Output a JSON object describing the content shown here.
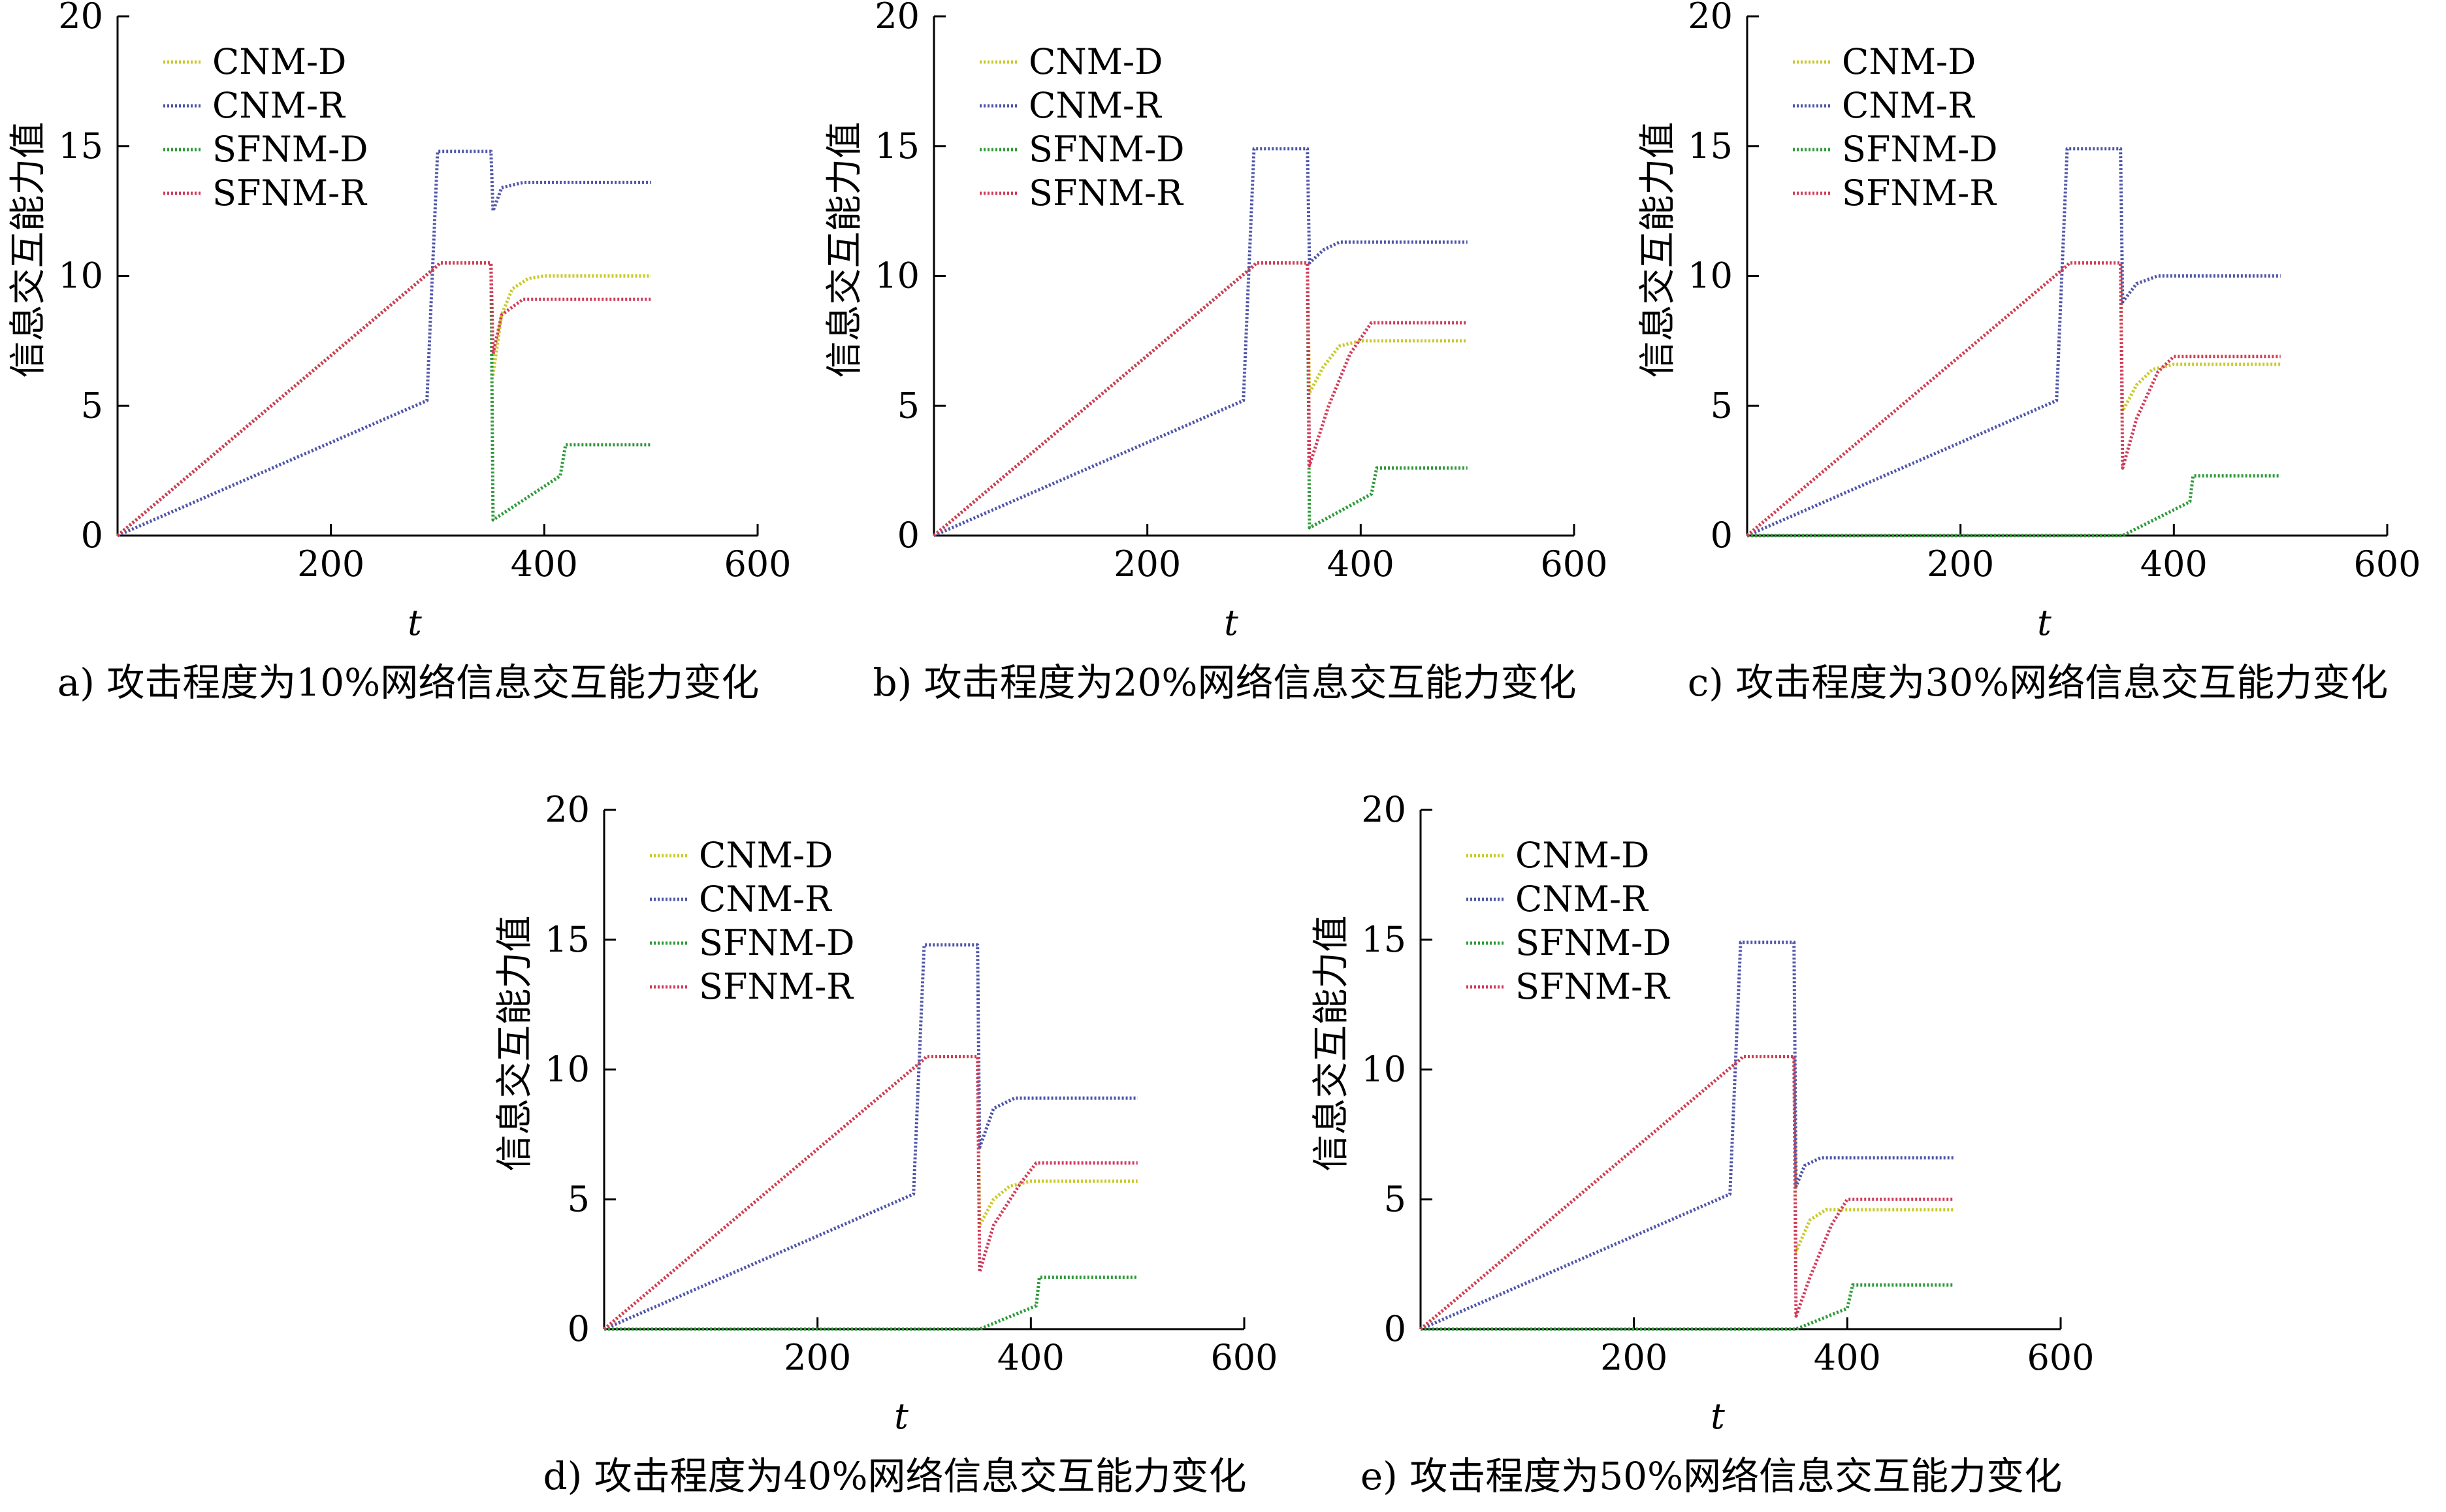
{
  "figure": {
    "panels": [
      {
        "id": "a",
        "caption": "a) 攻击程度为10%网络信息交互能力变化"
      },
      {
        "id": "b",
        "caption": "b) 攻击程度为20%网络信息交互能力变化"
      },
      {
        "id": "c",
        "caption": "c) 攻击程度为30%网络信息交互能力变化"
      },
      {
        "id": "d",
        "caption": "d) 攻击程度为40%网络信息交互能力变化"
      },
      {
        "id": "e",
        "caption": "e) 攻击程度为50%网络信息交互能力变化"
      }
    ]
  },
  "colors": {
    "CNM-D": "#c9c92a",
    "CNM-R": "#4f55a8",
    "SFNM-D": "#2e9a3a",
    "SFNM-R": "#d23b5a"
  },
  "chart_data": [
    {
      "type": "line",
      "panel": "a",
      "xlabel": "t",
      "ylabel": "信息交互能力值",
      "xlim": [
        0,
        600
      ],
      "ylim": [
        0,
        20
      ],
      "xticks": [
        200,
        400,
        600
      ],
      "yticks": [
        0,
        5,
        10,
        15,
        20
      ],
      "legend": "top-left",
      "series": [
        {
          "name": "CNM-D",
          "x": [
            0,
            300,
            302,
            350,
            352,
            360,
            370,
            385,
            400,
            500
          ],
          "y": [
            0,
            10.4,
            10.5,
            10.5,
            6.2,
            8.5,
            9.5,
            9.9,
            10.0,
            10.0
          ]
        },
        {
          "name": "CNM-R",
          "x": [
            0,
            290,
            300,
            350,
            352,
            360,
            380,
            500
          ],
          "y": [
            0,
            5.2,
            14.8,
            14.8,
            12.5,
            13.4,
            13.6,
            13.6
          ]
        },
        {
          "name": "SFNM-D",
          "x": [
            0,
            300,
            302,
            350,
            352,
            415,
            420,
            500
          ],
          "y": [
            0,
            10.4,
            10.5,
            10.5,
            0.6,
            2.3,
            3.5,
            3.5
          ]
        },
        {
          "name": "SFNM-R",
          "x": [
            0,
            300,
            302,
            350,
            352,
            360,
            380,
            500
          ],
          "y": [
            0,
            10.4,
            10.5,
            10.5,
            7.0,
            8.5,
            9.1,
            9.1
          ]
        }
      ]
    },
    {
      "type": "line",
      "panel": "b",
      "xlabel": "t",
      "ylabel": "信息交互能力值",
      "xlim": [
        0,
        600
      ],
      "ylim": [
        0,
        20
      ],
      "xticks": [
        200,
        400,
        600
      ],
      "yticks": [
        0,
        5,
        10,
        15,
        20
      ],
      "legend": "top-left",
      "series": [
        {
          "name": "CNM-D",
          "x": [
            0,
            300,
            302,
            350,
            352,
            365,
            380,
            400,
            500
          ],
          "y": [
            0,
            10.4,
            10.5,
            10.5,
            5.5,
            6.5,
            7.3,
            7.5,
            7.5
          ]
        },
        {
          "name": "CNM-R",
          "x": [
            0,
            290,
            300,
            350,
            352,
            365,
            380,
            500
          ],
          "y": [
            0,
            5.2,
            14.9,
            14.9,
            10.5,
            11.0,
            11.3,
            11.3
          ]
        },
        {
          "name": "SFNM-D",
          "x": [
            0,
            300,
            302,
            350,
            352,
            410,
            415,
            500
          ],
          "y": [
            0,
            10.4,
            10.5,
            10.5,
            0.3,
            1.6,
            2.6,
            2.6
          ]
        },
        {
          "name": "SFNM-R",
          "x": [
            0,
            300,
            302,
            350,
            352,
            370,
            390,
            410,
            500
          ],
          "y": [
            0,
            10.4,
            10.5,
            10.5,
            2.7,
            5.0,
            7.0,
            8.2,
            8.2
          ]
        }
      ]
    },
    {
      "type": "line",
      "panel": "c",
      "xlabel": "t",
      "ylabel": "信息交互能力值",
      "xlim": [
        0,
        600
      ],
      "ylim": [
        0,
        20
      ],
      "xticks": [
        200,
        400,
        600
      ],
      "yticks": [
        0,
        5,
        10,
        15,
        20
      ],
      "legend": "top-left",
      "series": [
        {
          "name": "CNM-D",
          "x": [
            0,
            300,
            302,
            350,
            352,
            365,
            380,
            400,
            500
          ],
          "y": [
            0,
            10.4,
            10.5,
            10.5,
            4.8,
            5.8,
            6.4,
            6.6,
            6.6
          ]
        },
        {
          "name": "CNM-R",
          "x": [
            0,
            290,
            300,
            350,
            352,
            365,
            385,
            500
          ],
          "y": [
            0,
            5.2,
            14.9,
            14.9,
            9.0,
            9.7,
            10.0,
            10.0
          ]
        },
        {
          "name": "SFNM-D",
          "x": [
            0,
            350,
            352,
            415,
            418,
            500
          ],
          "y": [
            0,
            0,
            0,
            1.3,
            2.3,
            2.3
          ]
        },
        {
          "name": "SFNM-R",
          "x": [
            0,
            300,
            302,
            350,
            352,
            365,
            385,
            400,
            500
          ],
          "y": [
            0,
            10.4,
            10.5,
            10.5,
            2.6,
            4.5,
            6.3,
            6.9,
            6.9
          ]
        }
      ]
    },
    {
      "type": "line",
      "panel": "d",
      "xlabel": "t",
      "ylabel": "信息交互能力值",
      "xlim": [
        0,
        600
      ],
      "ylim": [
        0,
        20
      ],
      "xticks": [
        200,
        400,
        600
      ],
      "yticks": [
        0,
        5,
        10,
        15,
        20
      ],
      "legend": "top-left",
      "series": [
        {
          "name": "CNM-D",
          "x": [
            0,
            300,
            302,
            350,
            352,
            365,
            380,
            400,
            500
          ],
          "y": [
            0,
            10.4,
            10.5,
            10.5,
            4.0,
            5.0,
            5.5,
            5.7,
            5.7
          ]
        },
        {
          "name": "CNM-R",
          "x": [
            0,
            290,
            300,
            350,
            352,
            365,
            385,
            500
          ],
          "y": [
            0,
            5.2,
            14.8,
            14.8,
            7.0,
            8.5,
            8.9,
            8.9
          ]
        },
        {
          "name": "SFNM-D",
          "x": [
            0,
            350,
            352,
            405,
            408,
            500
          ],
          "y": [
            0,
            0,
            0,
            0.9,
            2.0,
            2.0
          ]
        },
        {
          "name": "SFNM-R",
          "x": [
            0,
            300,
            302,
            350,
            352,
            365,
            390,
            405,
            500
          ],
          "y": [
            0,
            10.4,
            10.5,
            10.5,
            2.2,
            4.0,
            5.6,
            6.4,
            6.4
          ]
        }
      ]
    },
    {
      "type": "line",
      "panel": "e",
      "xlabel": "t",
      "ylabel": "信息交互能力值",
      "xlim": [
        0,
        600
      ],
      "ylim": [
        0,
        20
      ],
      "xticks": [
        200,
        400,
        600
      ],
      "yticks": [
        0,
        5,
        10,
        15,
        20
      ],
      "legend": "top-left",
      "series": [
        {
          "name": "CNM-D",
          "x": [
            0,
            300,
            302,
            350,
            352,
            365,
            380,
            500
          ],
          "y": [
            0,
            10.4,
            10.5,
            10.5,
            3.0,
            4.2,
            4.6,
            4.6
          ]
        },
        {
          "name": "CNM-R",
          "x": [
            0,
            290,
            300,
            350,
            352,
            360,
            375,
            500
          ],
          "y": [
            0,
            5.2,
            14.9,
            14.9,
            5.5,
            6.3,
            6.6,
            6.6
          ]
        },
        {
          "name": "SFNM-D",
          "x": [
            0,
            350,
            352,
            400,
            405,
            500
          ],
          "y": [
            0,
            0,
            0,
            0.8,
            1.7,
            1.7
          ]
        },
        {
          "name": "SFNM-R",
          "x": [
            0,
            300,
            302,
            350,
            352,
            365,
            385,
            400,
            500
          ],
          "y": [
            0,
            10.4,
            10.5,
            10.5,
            0.5,
            2.0,
            4.0,
            5.0,
            5.0
          ]
        }
      ]
    }
  ]
}
